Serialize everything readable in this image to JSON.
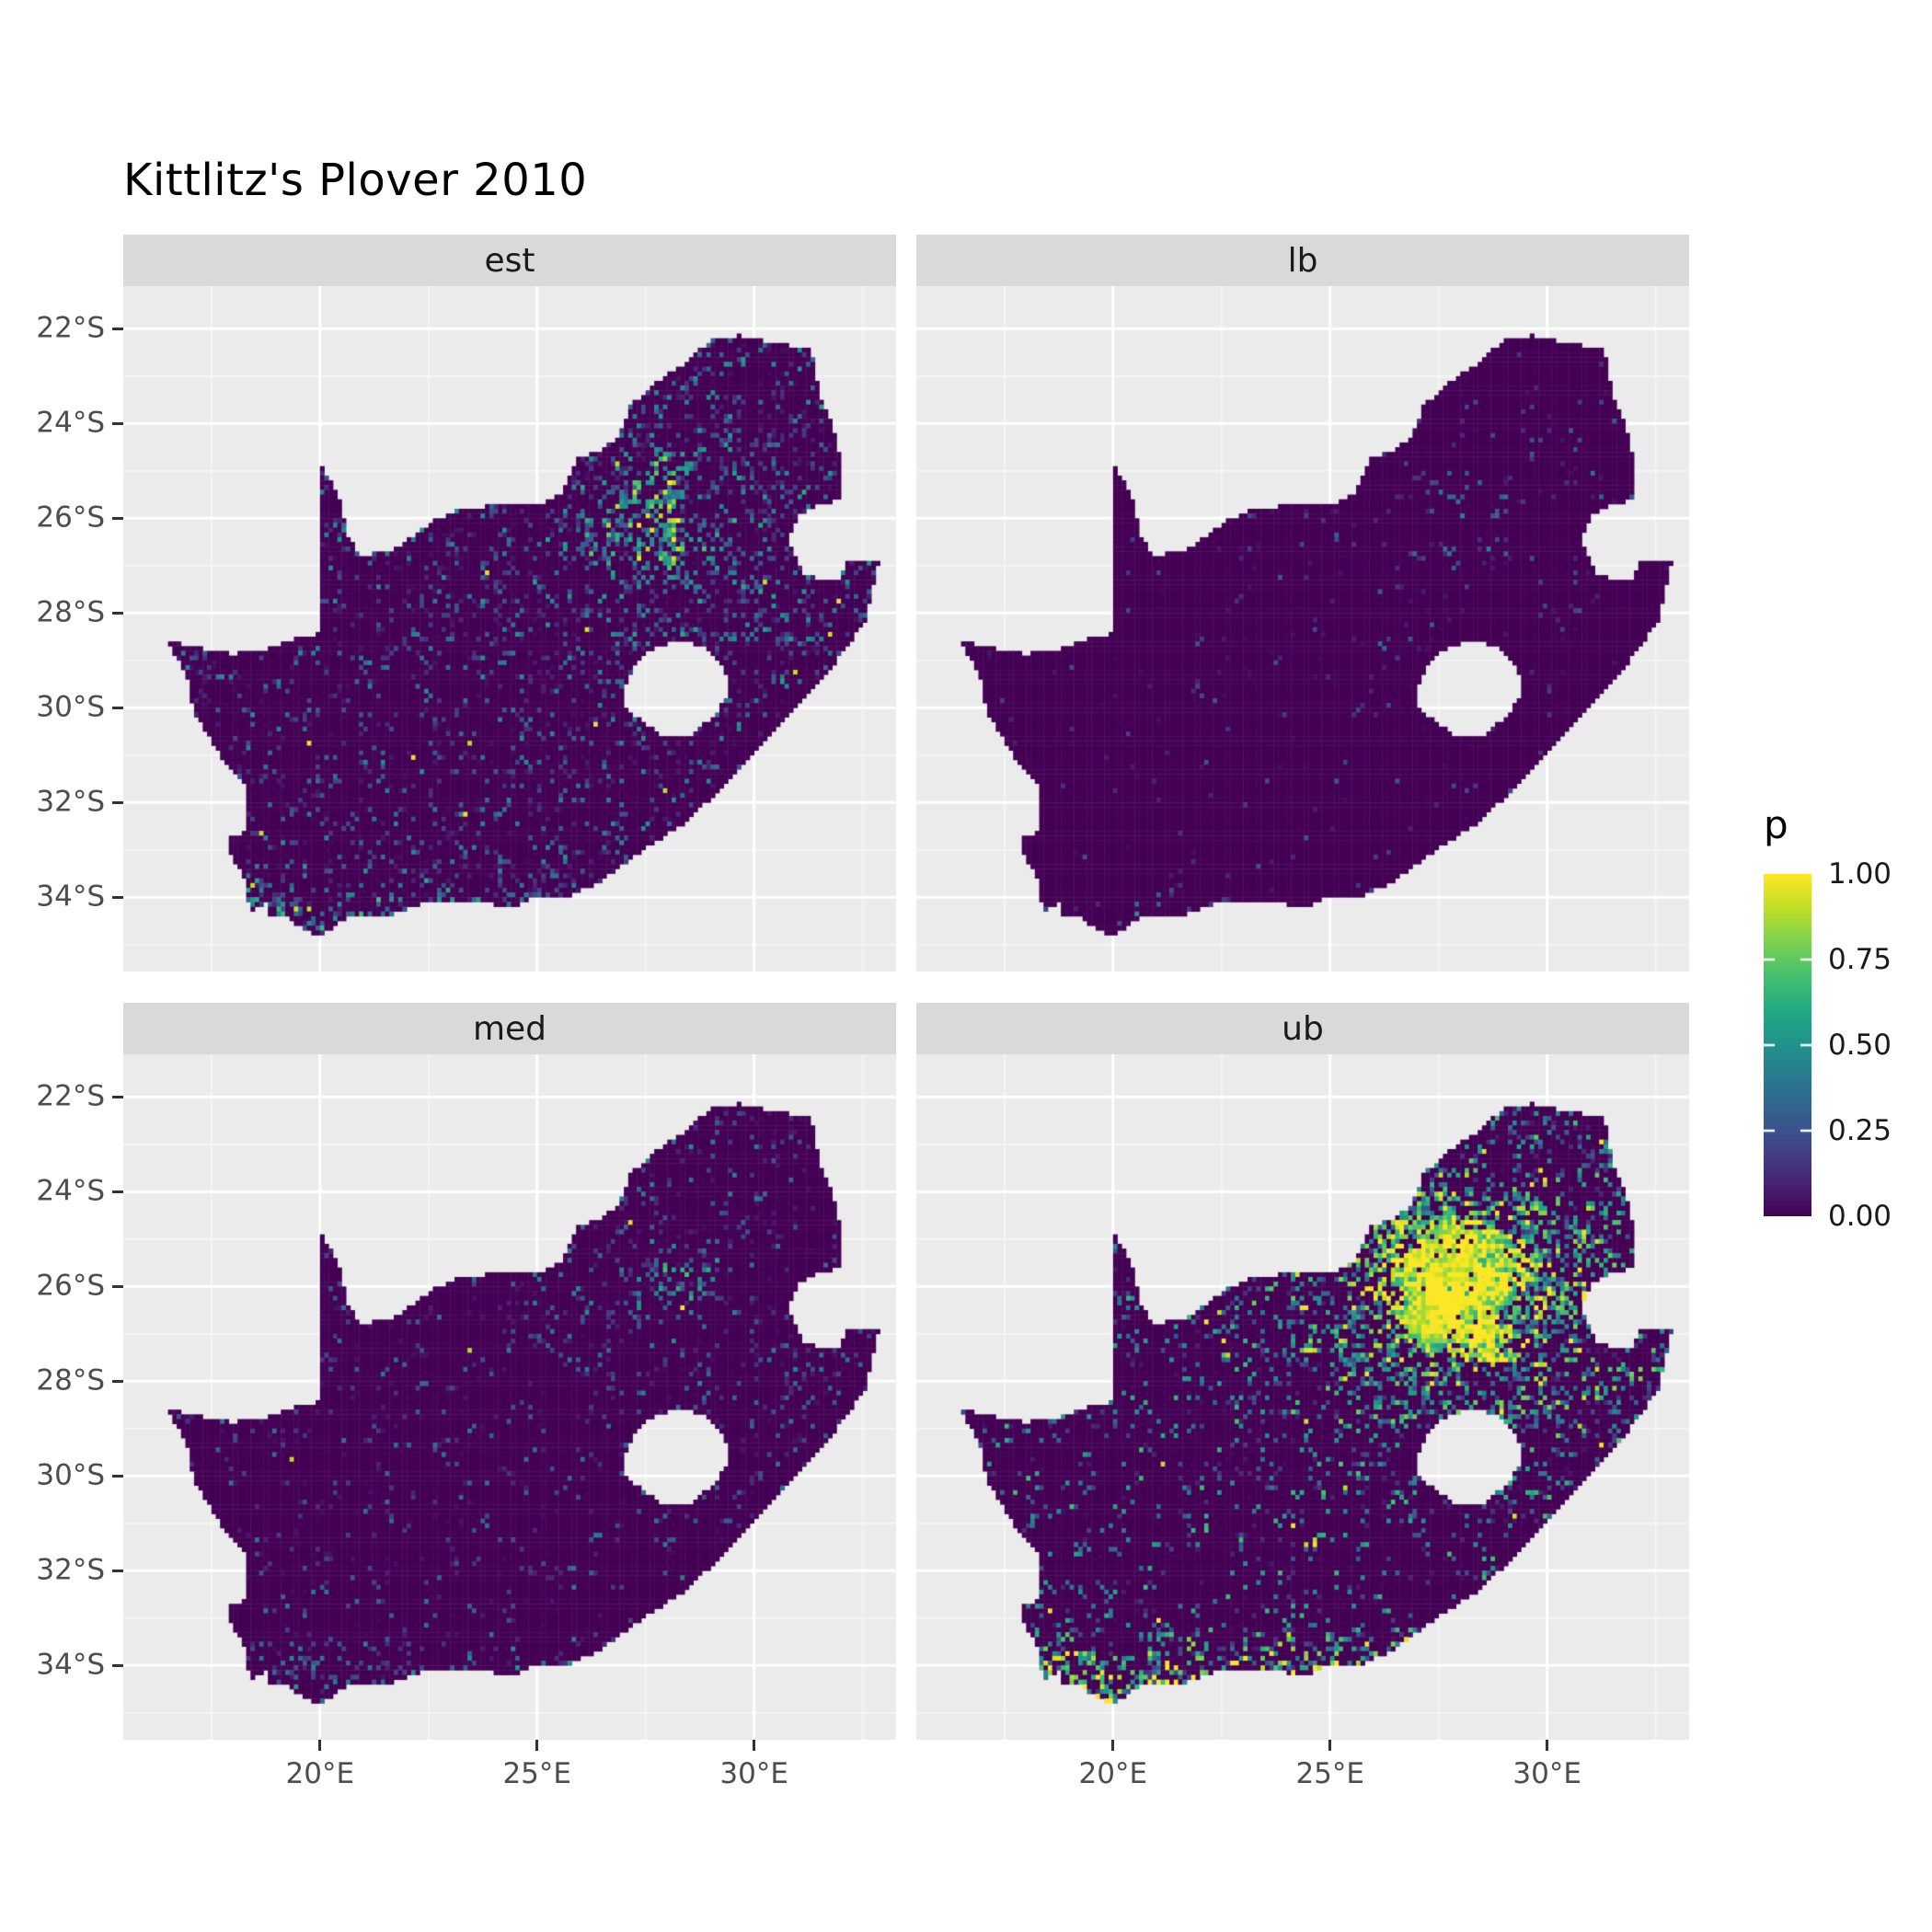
{
  "title": "Kittlitz's Plover 2010",
  "chart_data": {
    "type": "heatmap",
    "subtype": "faceted raster occupancy-probability maps of South Africa (2x2 facets)",
    "variable": "p",
    "title": "Kittlitz's Plover 2010",
    "x": {
      "label": "",
      "range": [
        15.47,
        33.27
      ],
      "ticks": [
        {
          "value": 20,
          "label": "20°E"
        },
        {
          "value": 25,
          "label": "25°E"
        },
        {
          "value": 30,
          "label": "30°E"
        }
      ]
    },
    "y": {
      "label": "",
      "range": [
        -35.57,
        -21.1
      ],
      "ticks": [
        {
          "value": -22,
          "label": "22°S"
        },
        {
          "value": -24,
          "label": "24°S"
        },
        {
          "value": -26,
          "label": "26°S"
        },
        {
          "value": -28,
          "label": "28°S"
        },
        {
          "value": -30,
          "label": "30°S"
        },
        {
          "value": -32,
          "label": "32°S"
        },
        {
          "value": -34,
          "label": "34°S"
        }
      ]
    },
    "legend": {
      "title": "p",
      "range": [
        0,
        1
      ],
      "breaks": [
        {
          "value": 1.0,
          "label": "1.00"
        },
        {
          "value": 0.75,
          "label": "0.75"
        },
        {
          "value": 0.5,
          "label": "0.50"
        },
        {
          "value": 0.25,
          "label": "0.25"
        },
        {
          "value": 0.0,
          "label": "0.00"
        }
      ]
    },
    "facets": [
      {
        "id": "est",
        "label": "est",
        "pattern": "mostly near-zero (dark purple) with fine teal speckle, dense green-yellow hotspot around 28E 26S (Gauteng), speckle along the southern coast",
        "gen": {
          "seed": 11,
          "sp": 0.24,
          "spAmp": 0.5,
          "spPow": 2.0,
          "hotProb": 0.55,
          "hotAmp": 0.5,
          "hotR": 1.9,
          "neProb": 0.22,
          "neAmp": 0.38,
          "coastProb": 0.45,
          "coastAmp": 0.45,
          "hiProb": 0.02,
          "core": false
        }
      },
      {
        "id": "lb",
        "label": "lb",
        "pattern": "almost entirely zero (dark purple) with very sparse faint dots and one or two yellow pixels near 25E 26.5S",
        "gen": {
          "seed": 29,
          "sp": 0.035,
          "spAmp": 0.3,
          "spPow": 2.5,
          "hotProb": 0.06,
          "hotAmp": 0.25,
          "hotR": 1.4,
          "neProb": 0.05,
          "neAmp": 0.22,
          "coastProb": 0.07,
          "coastAmp": 0.3,
          "hiProb": 0.005,
          "core": false
        }
      },
      {
        "id": "med",
        "label": "med",
        "pattern": "mostly zero with sparse speckle, small green-yellow cluster at the Gauteng hotspot, few coastal dots",
        "gen": {
          "seed": 43,
          "sp": 0.12,
          "spAmp": 0.42,
          "spPow": 2.2,
          "hotProb": 0.32,
          "hotAmp": 0.45,
          "hotR": 1.5,
          "neProb": 0.1,
          "neAmp": 0.3,
          "coastProb": 0.22,
          "coastAmp": 0.4,
          "hiProb": 0.012,
          "core": false
        }
      },
      {
        "id": "ub",
        "label": "ub",
        "pattern": "large yellow-green mass over the north-east (core near 28E 26S), broad green/yellow speckle across the east, strong yellow band along the southern and western Cape coast, dark purple interior Karoo",
        "gen": {
          "seed": 57,
          "sp": 0.16,
          "spAmp": 0.7,
          "spPow": 1.4,
          "hotProb": 0.9,
          "hotAmp": 0.9,
          "hotR": 2.3,
          "neProb": 0.75,
          "neAmp": 0.9,
          "coastProb": 0.85,
          "coastAmp": 0.95,
          "hiProb": 0.1,
          "core": true
        }
      }
    ],
    "colors": {
      "panel_bg": "#EBEBEB",
      "strip_bg": "#D9D9D9",
      "grid_major": "#FFFFFF",
      "grid_minor": "#F7F7F7",
      "axis_text": "#4D4D4D",
      "tick_mark": "#333333",
      "title_text": "#000000",
      "na_fill": "#440154",
      "viridis": [
        "#440154",
        "#482475",
        "#414487",
        "#355f8d",
        "#2a788e",
        "#21918c",
        "#22a884",
        "#44bf70",
        "#7ad151",
        "#bddf26",
        "#fde725"
      ]
    },
    "geometry": {
      "south_africa": [
        [
          16.45,
          -28.58
        ],
        [
          17.3,
          -28.76
        ],
        [
          18.0,
          -28.87
        ],
        [
          18.75,
          -28.77
        ],
        [
          19.45,
          -28.52
        ],
        [
          19.98,
          -28.43
        ],
        [
          19.98,
          -24.77
        ],
        [
          20.45,
          -25.55
        ],
        [
          20.65,
          -26.35
        ],
        [
          20.9,
          -26.8
        ],
        [
          21.7,
          -26.67
        ],
        [
          22.6,
          -26.05
        ],
        [
          23.3,
          -25.78
        ],
        [
          24.2,
          -25.73
        ],
        [
          25.0,
          -25.72
        ],
        [
          25.6,
          -25.46
        ],
        [
          25.9,
          -24.75
        ],
        [
          26.45,
          -24.58
        ],
        [
          26.9,
          -24.25
        ],
        [
          27.15,
          -23.6
        ],
        [
          27.75,
          -23.15
        ],
        [
          28.35,
          -22.75
        ],
        [
          29.05,
          -22.2
        ],
        [
          29.7,
          -22.14
        ],
        [
          30.45,
          -22.3
        ],
        [
          31.3,
          -22.41
        ],
        [
          31.55,
          -23.5
        ],
        [
          31.8,
          -24.0
        ],
        [
          31.95,
          -24.6
        ],
        [
          32.0,
          -25.62
        ],
        [
          31.4,
          -25.73
        ],
        [
          31.0,
          -25.98
        ],
        [
          30.8,
          -26.4
        ],
        [
          30.92,
          -26.8
        ],
        [
          31.18,
          -27.2
        ],
        [
          31.62,
          -27.32
        ],
        [
          31.97,
          -27.31
        ],
        [
          32.13,
          -26.86
        ],
        [
          32.89,
          -26.86
        ],
        [
          32.55,
          -28.2
        ],
        [
          31.95,
          -28.95
        ],
        [
          31.35,
          -29.6
        ],
        [
          30.65,
          -30.35
        ],
        [
          29.9,
          -31.1
        ],
        [
          29.15,
          -31.8
        ],
        [
          28.35,
          -32.45
        ],
        [
          27.45,
          -33.0
        ],
        [
          26.5,
          -33.65
        ],
        [
          25.65,
          -34.0
        ],
        [
          25.0,
          -33.98
        ],
        [
          24.5,
          -34.2
        ],
        [
          23.6,
          -34.1
        ],
        [
          22.55,
          -34.08
        ],
        [
          21.6,
          -34.38
        ],
        [
          20.55,
          -34.45
        ],
        [
          20.0,
          -34.82
        ],
        [
          19.45,
          -34.6
        ],
        [
          19.3,
          -34.4
        ],
        [
          18.85,
          -34.38
        ],
        [
          18.78,
          -34.05
        ],
        [
          18.45,
          -34.32
        ],
        [
          18.3,
          -34.05
        ],
        [
          18.35,
          -33.7
        ],
        [
          17.95,
          -33.1
        ],
        [
          17.85,
          -32.75
        ],
        [
          18.3,
          -32.6
        ],
        [
          18.28,
          -31.6
        ],
        [
          17.7,
          -31.0
        ],
        [
          17.1,
          -30.1
        ],
        [
          16.95,
          -29.35
        ],
        [
          16.45,
          -28.58
        ]
      ],
      "lesotho": [
        [
          27.0,
          -29.65
        ],
        [
          27.35,
          -28.95
        ],
        [
          27.8,
          -28.68
        ],
        [
          28.4,
          -28.6
        ],
        [
          28.95,
          -28.78
        ],
        [
          29.3,
          -29.15
        ],
        [
          29.45,
          -29.6
        ],
        [
          29.1,
          -30.15
        ],
        [
          28.55,
          -30.58
        ],
        [
          27.95,
          -30.65
        ],
        [
          27.4,
          -30.28
        ],
        [
          27.05,
          -29.98
        ]
      ]
    }
  }
}
